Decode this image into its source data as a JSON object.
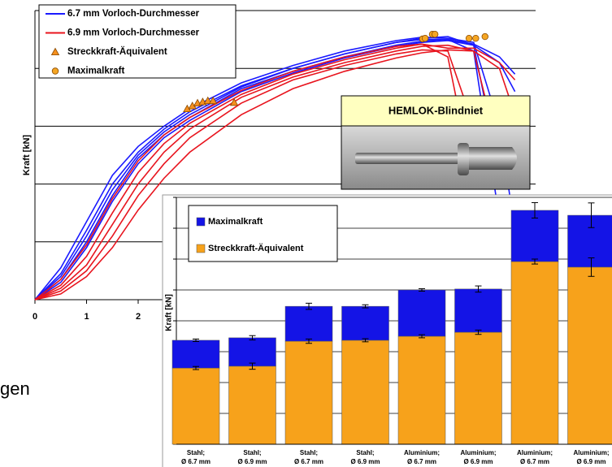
{
  "slide_text": "gen",
  "inset_title": "HEMLOK-Blindniet",
  "chart_data": [
    {
      "type": "line",
      "y_label": "Kraft [kN]",
      "x": [
        0,
        0.5,
        1,
        1.5,
        2,
        2.5,
        3,
        4,
        5,
        6,
        7,
        7.5,
        8,
        8.5,
        9,
        9.3
      ],
      "xlim": [
        0,
        9.7
      ],
      "xticks": [
        0,
        1,
        2
      ],
      "ylim": [
        0,
        5
      ],
      "yticks": [
        0,
        1,
        2,
        3,
        4,
        5
      ],
      "show_ytick_labels": false,
      "grid": true,
      "series": [
        {
          "name": "6.7 mm Vorloch-Durchmesser",
          "color": "#1a1aff",
          "curves": [
            {
              "values": [
                0,
                0.55,
                1.35,
                2.15,
                2.65,
                3.0,
                3.3,
                3.75,
                4.05,
                4.3,
                4.48,
                4.54,
                4.52,
                4.45,
                3.0,
                1.2
              ]
            },
            {
              "values": [
                0,
                0.45,
                1.2,
                2.0,
                2.55,
                2.95,
                3.25,
                3.7,
                4.0,
                4.25,
                4.45,
                4.52,
                4.55,
                4.4,
                2.2,
                null
              ]
            },
            {
              "values": [
                0,
                0.4,
                1.1,
                1.9,
                2.5,
                2.9,
                3.2,
                3.68,
                4.0,
                4.25,
                4.45,
                4.5,
                4.5,
                4.42,
                4.2,
                3.9
              ]
            },
            {
              "values": [
                0,
                0.35,
                1.0,
                1.8,
                2.45,
                2.85,
                3.15,
                3.65,
                3.95,
                4.2,
                4.4,
                4.47,
                4.5,
                4.3,
                1.4,
                null
              ]
            },
            {
              "values": [
                0,
                0.3,
                0.9,
                1.7,
                2.35,
                2.8,
                3.1,
                3.6,
                3.92,
                4.18,
                4.38,
                4.45,
                4.48,
                4.4,
                4.1,
                3.6
              ]
            }
          ]
        },
        {
          "name": "6.9 mm Vorloch-Durchmesser",
          "color": "#e8141e",
          "curves": [
            {
              "values": [
                0,
                0.35,
                0.95,
                1.75,
                2.4,
                2.85,
                3.15,
                3.62,
                3.95,
                4.2,
                4.38,
                4.42,
                4.2,
                2.0,
                null,
                null
              ]
            },
            {
              "values": [
                0,
                0.25,
                0.75,
                1.5,
                2.2,
                2.7,
                3.05,
                3.55,
                3.9,
                4.15,
                4.35,
                4.42,
                4.35,
                4.35,
                4.1,
                3.8
              ]
            },
            {
              "values": [
                0,
                0.2,
                0.6,
                1.3,
                2.0,
                2.55,
                2.95,
                3.5,
                3.85,
                4.1,
                4.3,
                4.38,
                4.4,
                4.3,
                2.5,
                null
              ]
            },
            {
              "values": [
                0,
                0.15,
                0.5,
                1.1,
                1.8,
                2.35,
                2.8,
                3.4,
                3.8,
                4.05,
                4.25,
                4.32,
                4.3,
                3.0,
                null,
                null
              ]
            },
            {
              "values": [
                0,
                0.1,
                0.4,
                0.9,
                1.55,
                2.1,
                2.55,
                3.2,
                3.65,
                3.95,
                4.18,
                4.27,
                4.32,
                4.3,
                4.0,
                3.2
              ]
            }
          ]
        },
        {
          "name": "Streckkraft-Äquivalent",
          "color": "#f5901e",
          "marker": "triangle",
          "x": [
            2.95,
            3.05,
            3.15,
            3.25,
            3.35,
            3.45,
            3.86
          ],
          "values": [
            3.3,
            3.35,
            3.4,
            3.42,
            3.44,
            3.44,
            3.41
          ]
        },
        {
          "name": "Maximalkraft",
          "color": "#f5a623",
          "marker": "circle",
          "x": [
            7.51,
            7.56,
            7.7,
            7.75,
            8.41,
            8.54,
            8.72
          ],
          "values": [
            4.51,
            4.52,
            4.59,
            4.59,
            4.52,
            4.52,
            4.55
          ]
        }
      ]
    },
    {
      "type": "bar",
      "stacked": true,
      "y_label": "Kraft [kN]",
      "categories": [
        [
          "Stahl;",
          "Ø 6.7 mm"
        ],
        [
          "Stahl;",
          "Ø 6.9 mm"
        ],
        [
          "Stahl;",
          "Ø 6.7 mm"
        ],
        [
          "Stahl;",
          "Ø 6.9 mm"
        ],
        [
          "Aluminium;",
          "Ø 6.7 mm"
        ],
        [
          "Aluminium;",
          "Ø 6.9 mm"
        ],
        [
          "Aluminium;",
          "Ø 6.7 mm"
        ],
        [
          "Aluminium;",
          "Ø 6.9 mm"
        ]
      ],
      "ylim": [
        0,
        8
      ],
      "yticks": [
        0,
        1,
        2,
        3,
        4,
        5,
        6,
        7,
        8
      ],
      "show_ytick_labels": false,
      "grid": true,
      "series": [
        {
          "name": "Streckkraft-Äquivalent",
          "color": "#f7a21b",
          "values": [
            2.47,
            2.53,
            3.34,
            3.37,
            3.5,
            3.63,
            5.92,
            5.74
          ],
          "errors": [
            0.05,
            0.1,
            0.07,
            0.05,
            0.05,
            0.07,
            0.08,
            0.3
          ]
        },
        {
          "name": "Maximalkraft",
          "color": "#1414e6",
          "values": [
            0.9,
            0.92,
            1.13,
            1.1,
            1.5,
            1.4,
            1.66,
            1.68
          ],
          "errors": [
            0.04,
            0.07,
            0.1,
            0.05,
            0.04,
            0.1,
            0.25,
            0.4
          ]
        }
      ]
    }
  ]
}
